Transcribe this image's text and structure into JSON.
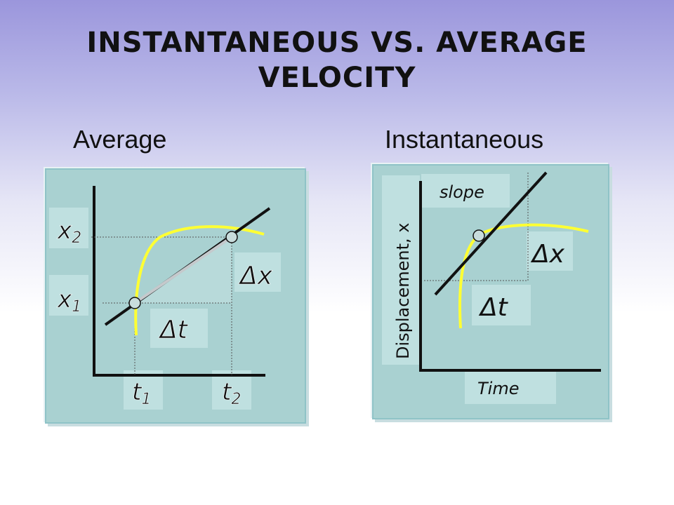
{
  "slide": {
    "title_line1": "Instantaneous vs. Average",
    "title_line2": "Velocity"
  },
  "average": {
    "heading": "Average",
    "labels": {
      "x2": "x",
      "x2_sub": "2",
      "x1": "x",
      "x1_sub": "1",
      "t1": "t",
      "t1_sub": "1",
      "t2": "t",
      "t2_sub": "2",
      "dx": "Δx",
      "dt": "Δt"
    }
  },
  "instantaneous": {
    "heading": "Instantaneous",
    "labels": {
      "slope": "slope",
      "y_axis": "Displacement, x",
      "x_axis": "Time",
      "dx": "Δx",
      "dt": "Δt"
    }
  },
  "colors": {
    "curve": "#ffff33",
    "label_box": "#bfe0e0",
    "panel": "#a9d1d1",
    "line": "#111111"
  }
}
